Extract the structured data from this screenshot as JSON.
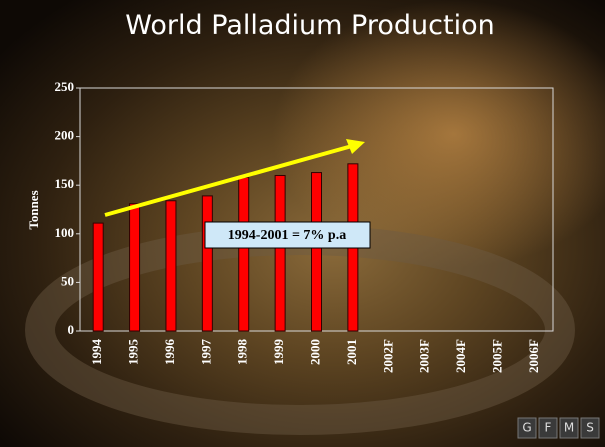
{
  "chart_data": {
    "type": "bar",
    "title": "World Palladium Production",
    "y_label": "Tonnes",
    "annotation": "1994-2001 = 7% p.a",
    "categories": [
      "1994",
      "1995",
      "1996",
      "1997",
      "1998",
      "1999",
      "2000",
      "2001",
      "2002F",
      "2003F",
      "2004F",
      "2005F",
      "2006F"
    ],
    "values": [
      111,
      131,
      134,
      139,
      158,
      160,
      163,
      172,
      null,
      null,
      null,
      null,
      null
    ],
    "color": "#ff0000",
    "ylim": [
      0,
      250
    ],
    "yticks": [
      0,
      50,
      100,
      150,
      200,
      250
    ],
    "grid": false
  },
  "logo_letters": [
    "G",
    "F",
    "M",
    "S"
  ]
}
